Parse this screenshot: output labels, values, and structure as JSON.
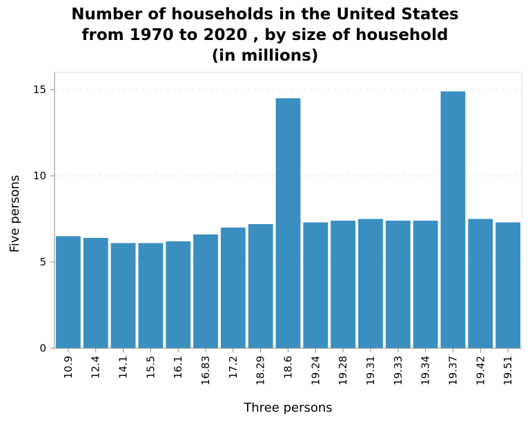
{
  "chart_data": {
    "type": "bar",
    "title_lines": [
      "Number of households in the United States",
      "from 1970 to 2020 , by size of household",
      "(in millions)"
    ],
    "xlabel": "Three persons",
    "ylabel": "Five persons",
    "categories": [
      "10.9",
      "12.4",
      "14.1",
      "15.5",
      "16.1",
      "16.83",
      "17.2",
      "18.29",
      "18.6",
      "19.24",
      "19.28",
      "19.31",
      "19.33",
      "19.34",
      "19.37",
      "19.42",
      "19.51"
    ],
    "values": [
      6.5,
      6.4,
      6.1,
      6.1,
      6.2,
      6.6,
      7.0,
      7.2,
      14.5,
      7.3,
      7.4,
      7.5,
      7.4,
      7.4,
      14.9,
      7.5,
      7.3
    ],
    "ylim": [
      0,
      16
    ],
    "yticks": [
      0,
      5,
      10,
      15
    ],
    "grid": true,
    "bar_color": "#3a8fc0"
  }
}
